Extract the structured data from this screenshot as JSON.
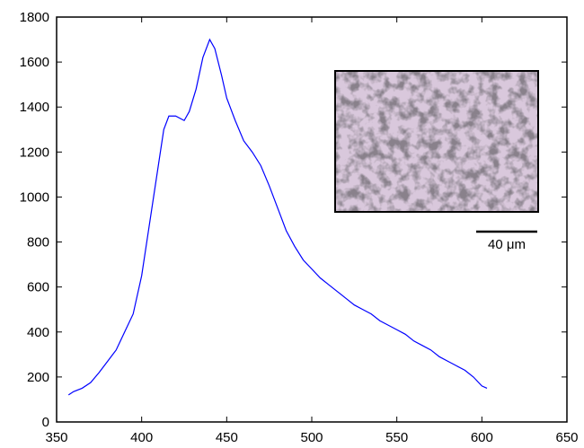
{
  "chart_data": {
    "type": "line",
    "x": [
      357,
      360,
      365,
      370,
      375,
      380,
      385,
      390,
      395,
      400,
      405,
      410,
      413,
      416,
      420,
      425,
      428,
      432,
      436,
      440,
      443,
      447,
      450,
      455,
      460,
      465,
      470,
      475,
      480,
      485,
      490,
      495,
      500,
      505,
      510,
      515,
      520,
      525,
      530,
      535,
      540,
      545,
      550,
      555,
      560,
      565,
      570,
      575,
      580,
      585,
      590,
      595,
      600,
      603
    ],
    "series": [
      {
        "color": "#0000ff",
        "values": [
          120,
          135,
          150,
          175,
          220,
          270,
          320,
          400,
          480,
          650,
          900,
          1150,
          1300,
          1360,
          1360,
          1340,
          1380,
          1480,
          1620,
          1700,
          1660,
          1540,
          1440,
          1340,
          1250,
          1200,
          1140,
          1050,
          950,
          850,
          780,
          720,
          680,
          640,
          610,
          580,
          550,
          520,
          500,
          480,
          450,
          430,
          410,
          390,
          360,
          340,
          320,
          290,
          270,
          250,
          230,
          200,
          160,
          150
        ]
      }
    ],
    "xlim": [
      350,
      650
    ],
    "xticks": [
      350,
      400,
      450,
      500,
      550,
      600,
      650
    ],
    "ylim": [
      0,
      1800
    ],
    "yticks": [
      0,
      200,
      400,
      600,
      800,
      1000,
      1200,
      1400,
      1600,
      1800
    ],
    "annotations": [
      "40 μm"
    ]
  }
}
